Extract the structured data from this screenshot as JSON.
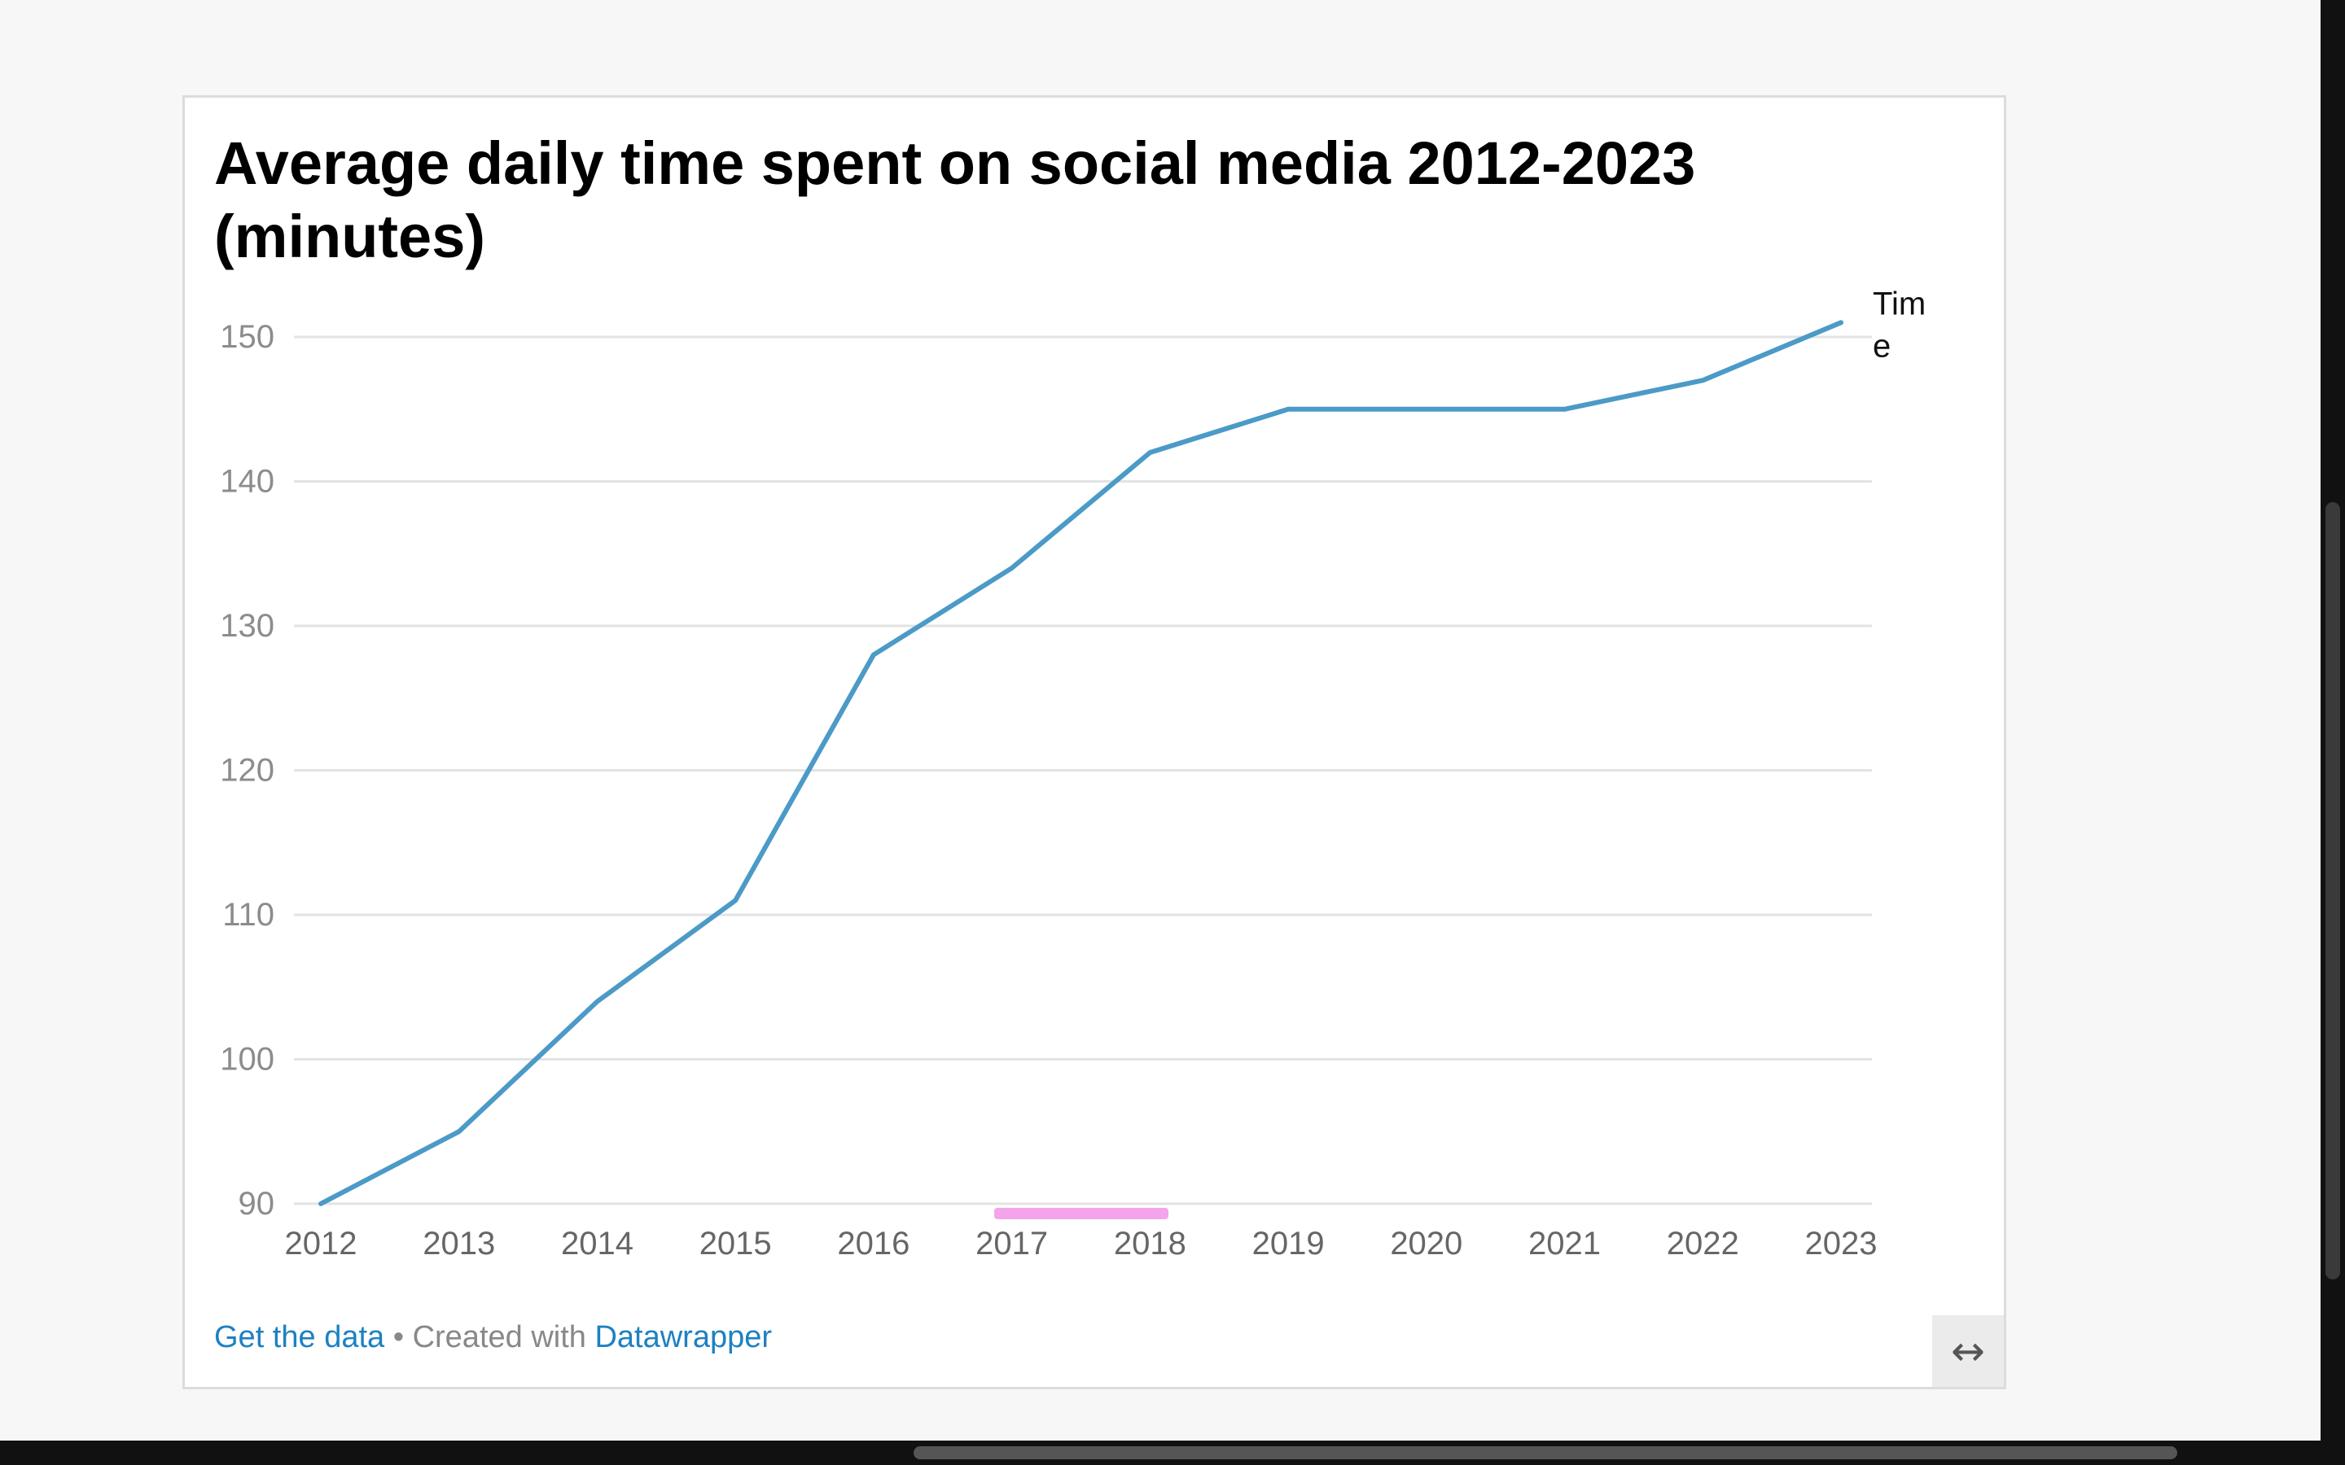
{
  "chart_data": {
    "type": "line",
    "title": "Average daily time spent on social media 2012-2023 (minutes)",
    "x": [
      "2012",
      "2013",
      "2014",
      "2015",
      "2016",
      "2017",
      "2018",
      "2019",
      "2020",
      "2021",
      "2022",
      "2023"
    ],
    "series": [
      {
        "name": "Time",
        "values": [
          90,
          95,
          104,
          111,
          128,
          134,
          142,
          145,
          145,
          145,
          147,
          151
        ],
        "color": "#4b9ac7"
      }
    ],
    "yticks": [
      "90",
      "100",
      "110",
      "120",
      "130",
      "140",
      "150"
    ],
    "ylim": [
      90,
      150
    ],
    "grid": true,
    "series_label_position": "line-end"
  },
  "footer": {
    "get_data": "Get the data",
    "separator": " • Created with ",
    "datawrapper": "Datawrapper"
  },
  "resize_icon": "↔",
  "colors": {
    "line": "#4b9ac7",
    "link": "#1d81c2",
    "grid": "#e3e3e3",
    "tick_text": "#8c8c8c",
    "highlight": "#f4a4ea"
  }
}
